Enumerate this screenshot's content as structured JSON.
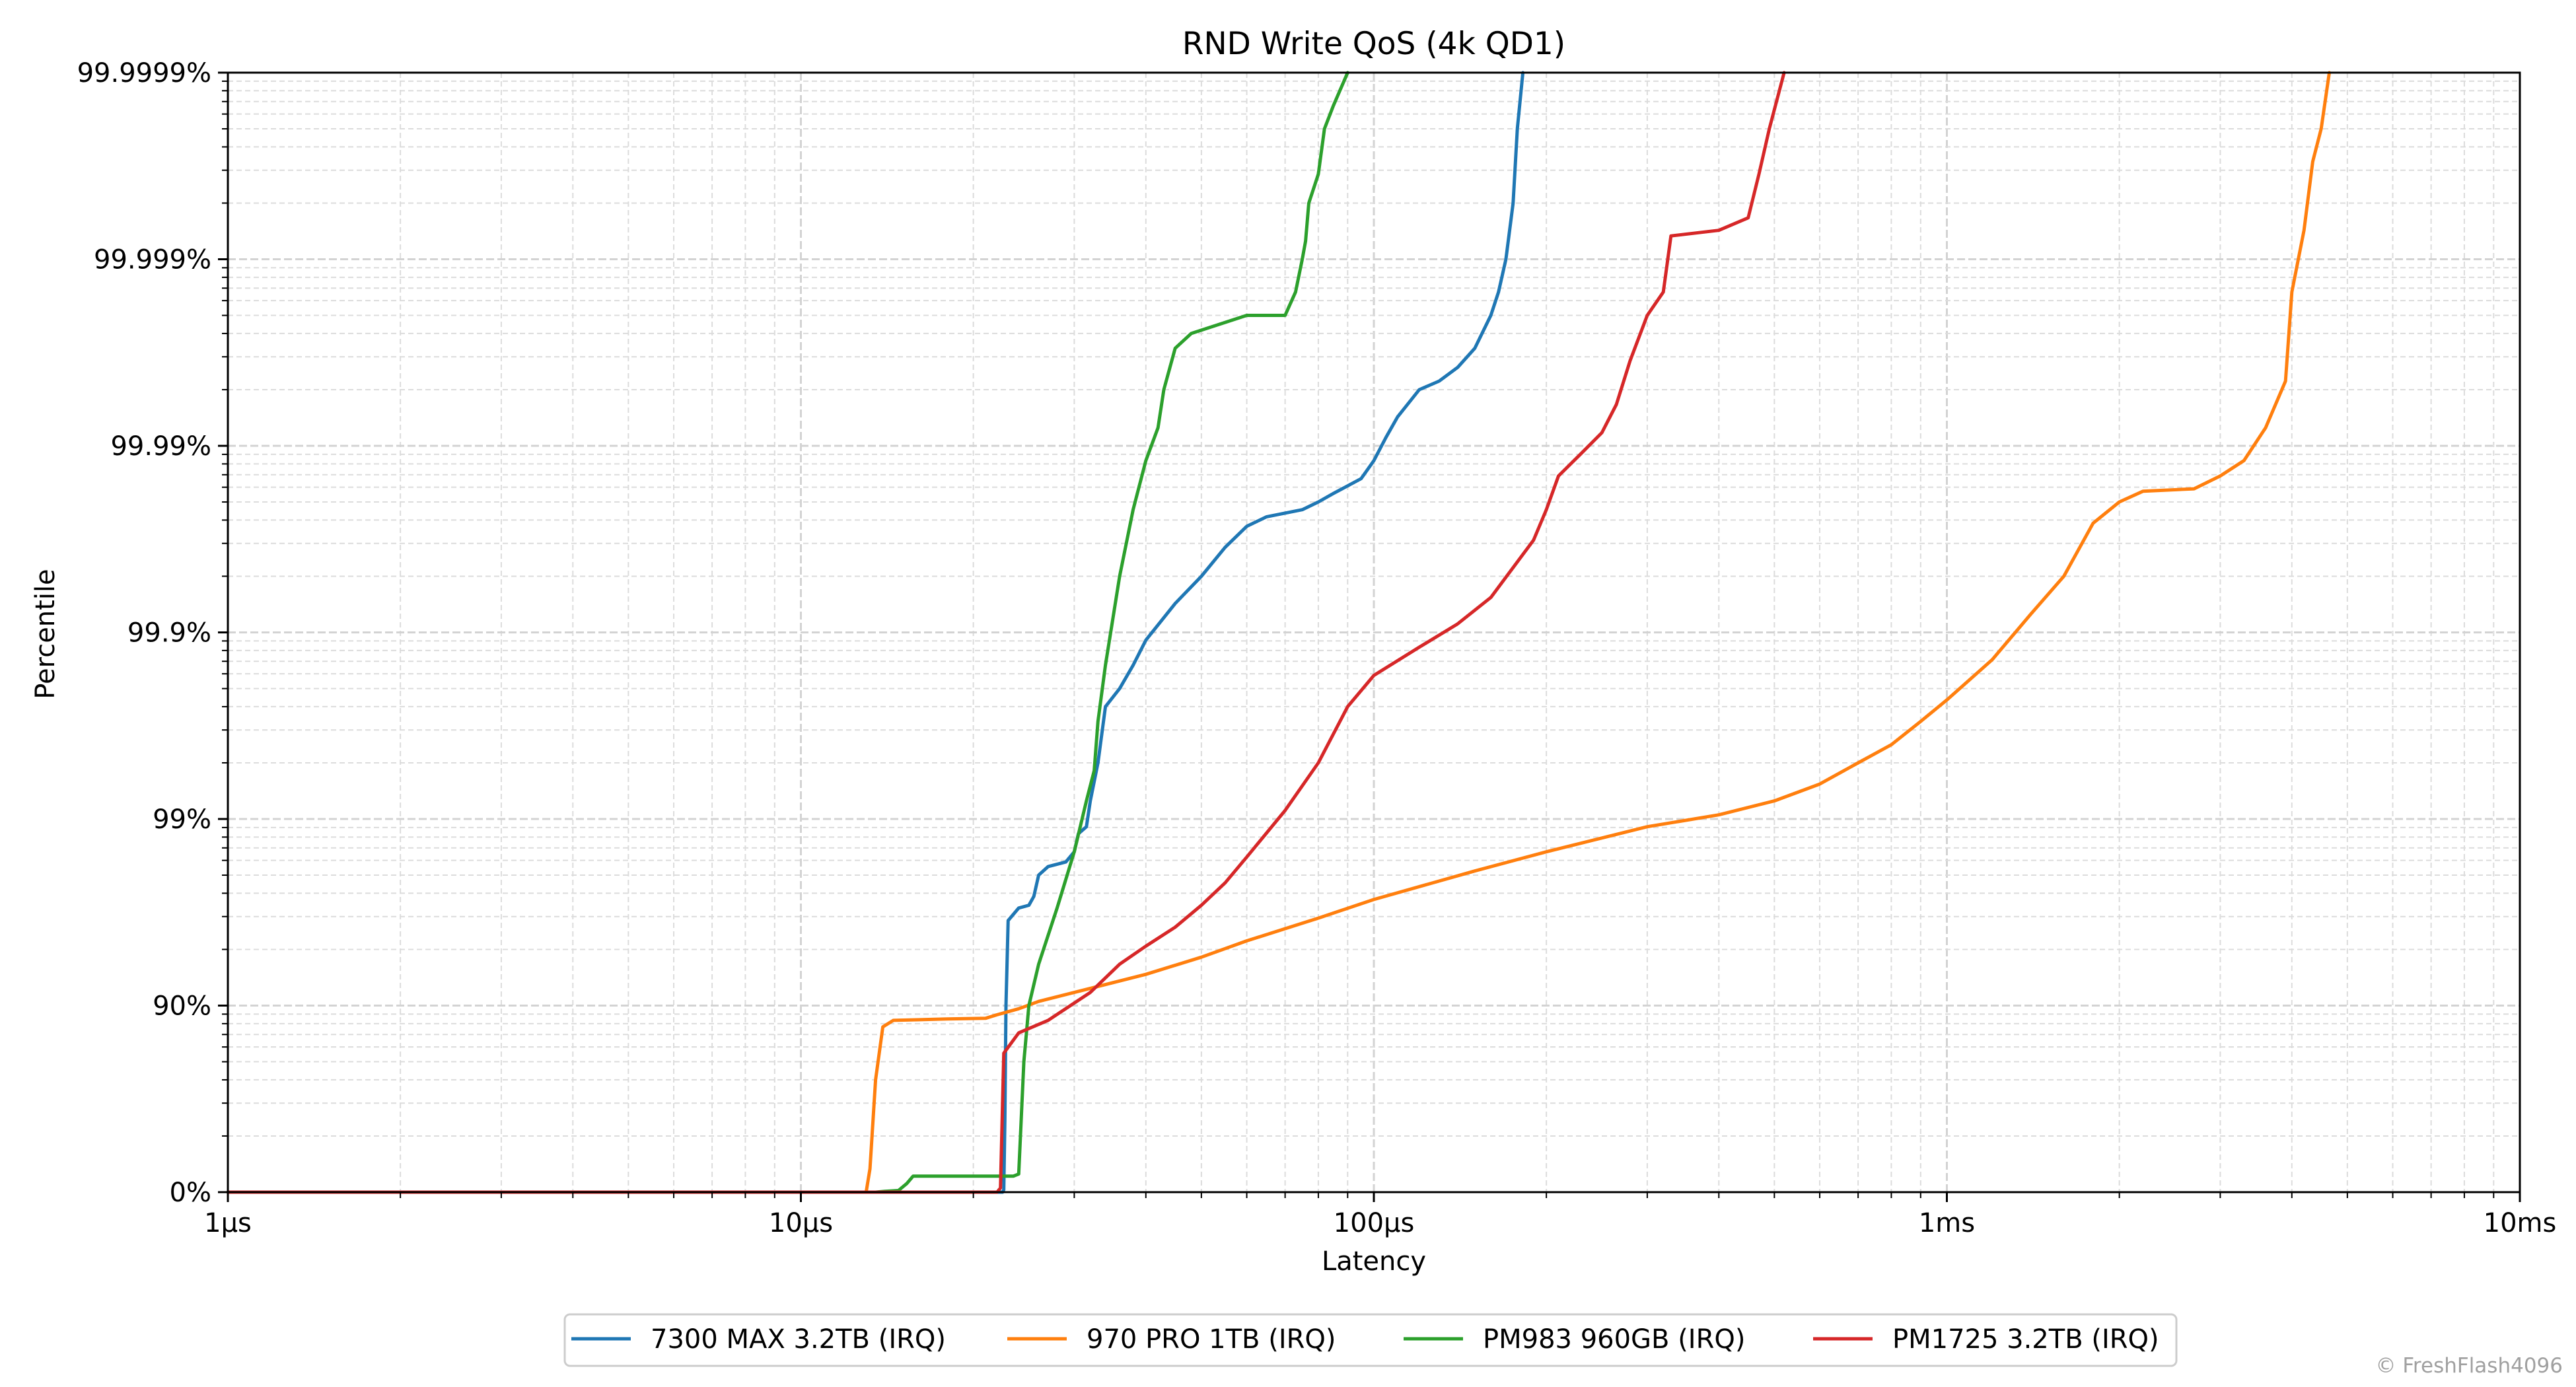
{
  "chart_data": {
    "type": "line",
    "title": "RND Write QoS (4k QD1)",
    "xlabel": "Latency",
    "ylabel": "Percentile",
    "x_scale": "log",
    "x_unit": "µs",
    "xlim": [
      1,
      10000
    ],
    "x_ticks": [
      {
        "value": 1,
        "label": "1µs"
      },
      {
        "value": 10,
        "label": "10µs"
      },
      {
        "value": 100,
        "label": "100µs"
      },
      {
        "value": 1000,
        "label": "1ms"
      },
      {
        "value": 10000,
        "label": "10ms"
      }
    ],
    "y_scale": "nines (percentile)",
    "ylim": [
      0,
      99.9999
    ],
    "y_ticks": [
      {
        "value": 0,
        "label": "0%"
      },
      {
        "value": 90,
        "label": "90%"
      },
      {
        "value": 99,
        "label": "99%"
      },
      {
        "value": 99.9,
        "label": "99.9%"
      },
      {
        "value": 99.99,
        "label": "99.99%"
      },
      {
        "value": 99.999,
        "label": "99.999%"
      },
      {
        "value": 99.9999,
        "label": "99.9999%"
      }
    ],
    "grid": true,
    "legend_position": "bottom-center",
    "series": [
      {
        "name": "7300 MAX 3.2TB (IRQ)",
        "color": "#1f77b4",
        "points": [
          [
            1,
            0
          ],
          [
            22.5,
            0
          ],
          [
            22.6,
            3
          ],
          [
            22.7,
            60
          ],
          [
            22.8,
            90
          ],
          [
            23,
            96.5
          ],
          [
            24,
            97
          ],
          [
            25,
            97.1
          ],
          [
            25.5,
            97.4
          ],
          [
            26,
            98
          ],
          [
            27,
            98.2
          ],
          [
            29,
            98.3
          ],
          [
            30,
            98.5
          ],
          [
            30.5,
            98.8
          ],
          [
            31.5,
            98.9
          ],
          [
            32,
            99.2
          ],
          [
            33,
            99.5
          ],
          [
            34,
            99.75
          ],
          [
            36,
            99.8
          ],
          [
            38,
            99.85
          ],
          [
            40,
            99.89
          ],
          [
            45,
            99.93
          ],
          [
            50,
            99.95
          ],
          [
            55,
            99.965
          ],
          [
            60,
            99.973
          ],
          [
            65,
            99.976
          ],
          [
            75,
            99.978
          ],
          [
            80,
            99.98
          ],
          [
            85,
            99.982
          ],
          [
            95,
            99.985
          ],
          [
            100,
            99.988
          ],
          [
            105,
            99.991
          ],
          [
            110,
            99.993
          ],
          [
            120,
            99.995
          ],
          [
            130,
            99.9955
          ],
          [
            140,
            99.9962
          ],
          [
            150,
            99.997
          ],
          [
            160,
            99.998
          ],
          [
            165,
            99.9985
          ],
          [
            170,
            99.999
          ],
          [
            175,
            99.9995
          ],
          [
            178,
            99.9998
          ],
          [
            182,
            99.9999
          ]
        ]
      },
      {
        "name": "970 PRO 1TB (IRQ)",
        "color": "#ff7f0e",
        "points": [
          [
            1,
            0
          ],
          [
            13,
            0
          ],
          [
            13.2,
            25
          ],
          [
            13.5,
            75
          ],
          [
            13.9,
            87
          ],
          [
            14.5,
            88
          ],
          [
            18,
            88.2
          ],
          [
            21,
            88.3
          ],
          [
            22,
            88.8
          ],
          [
            24,
            89.6
          ],
          [
            26,
            90.5
          ],
          [
            30,
            91.5
          ],
          [
            40,
            93.2
          ],
          [
            50,
            94.5
          ],
          [
            60,
            95.5
          ],
          [
            80,
            96.6
          ],
          [
            100,
            97.3
          ],
          [
            150,
            98.1
          ],
          [
            200,
            98.5
          ],
          [
            300,
            98.9
          ],
          [
            400,
            99.05
          ],
          [
            500,
            99.2
          ],
          [
            600,
            99.35
          ],
          [
            700,
            99.5
          ],
          [
            800,
            99.6
          ],
          [
            900,
            99.7
          ],
          [
            1000,
            99.77
          ],
          [
            1200,
            99.86
          ],
          [
            1400,
            99.92
          ],
          [
            1600,
            99.95
          ],
          [
            1800,
            99.974
          ],
          [
            2000,
            99.98
          ],
          [
            2200,
            99.9825
          ],
          [
            2700,
            99.983
          ],
          [
            3000,
            99.9855
          ],
          [
            3300,
            99.988
          ],
          [
            3600,
            99.992
          ],
          [
            3900,
            99.9955
          ],
          [
            4000,
            99.9985
          ],
          [
            4200,
            99.9993
          ],
          [
            4350,
            99.9997
          ],
          [
            4500,
            99.9998
          ],
          [
            4650,
            99.9999
          ]
        ]
      },
      {
        "name": "PM983 960GB (IRQ)",
        "color": "#2ca02c",
        "points": [
          [
            1,
            0
          ],
          [
            13.5,
            0
          ],
          [
            14,
            1
          ],
          [
            14.8,
            2
          ],
          [
            15.3,
            10
          ],
          [
            15.7,
            18
          ],
          [
            17,
            18
          ],
          [
            21,
            18
          ],
          [
            23.5,
            18
          ],
          [
            24,
            20
          ],
          [
            24.5,
            80
          ],
          [
            25,
            90
          ],
          [
            26,
            94
          ],
          [
            28,
            97
          ],
          [
            30,
            98.5
          ],
          [
            31.5,
            99.2
          ],
          [
            32.5,
            99.45
          ],
          [
            33,
            99.7
          ],
          [
            34,
            99.85
          ],
          [
            36,
            99.95
          ],
          [
            38,
            99.978
          ],
          [
            40,
            99.988
          ],
          [
            42,
            99.992
          ],
          [
            43,
            99.995
          ],
          [
            45,
            99.997
          ],
          [
            48,
            99.9975
          ],
          [
            60,
            99.998
          ],
          [
            70,
            99.998
          ],
          [
            73,
            99.9985
          ],
          [
            75,
            99.999
          ],
          [
            76,
            99.9992
          ],
          [
            77,
            99.9995
          ],
          [
            80,
            99.99965
          ],
          [
            82,
            99.9998
          ],
          [
            85,
            99.99985
          ],
          [
            90,
            99.9999
          ]
        ]
      },
      {
        "name": "PM1725 3.2TB (IRQ)",
        "color": "#d62728",
        "points": [
          [
            1,
            0
          ],
          [
            22,
            0
          ],
          [
            22.3,
            5
          ],
          [
            22.6,
            82
          ],
          [
            24,
            86
          ],
          [
            27,
            88
          ],
          [
            32,
            91.5
          ],
          [
            36,
            94
          ],
          [
            40,
            95.2
          ],
          [
            45,
            96.2
          ],
          [
            50,
            97.1
          ],
          [
            55,
            97.8
          ],
          [
            60,
            98.4
          ],
          [
            70,
            99.1
          ],
          [
            80,
            99.5
          ],
          [
            90,
            99.75
          ],
          [
            100,
            99.83
          ],
          [
            120,
            99.88
          ],
          [
            140,
            99.91
          ],
          [
            160,
            99.935
          ],
          [
            180,
            99.96
          ],
          [
            190,
            99.968
          ],
          [
            200,
            99.978
          ],
          [
            210,
            99.9855
          ],
          [
            230,
            99.989
          ],
          [
            250,
            99.9915
          ],
          [
            265,
            99.994
          ],
          [
            280,
            99.9965
          ],
          [
            300,
            99.998
          ],
          [
            320,
            99.9985
          ],
          [
            330,
            99.99925
          ],
          [
            400,
            99.9993
          ],
          [
            450,
            99.9994
          ],
          [
            470,
            99.99965
          ],
          [
            490,
            99.9998
          ],
          [
            520,
            99.9999
          ]
        ]
      }
    ]
  },
  "watermark": "© FreshFlash4096"
}
